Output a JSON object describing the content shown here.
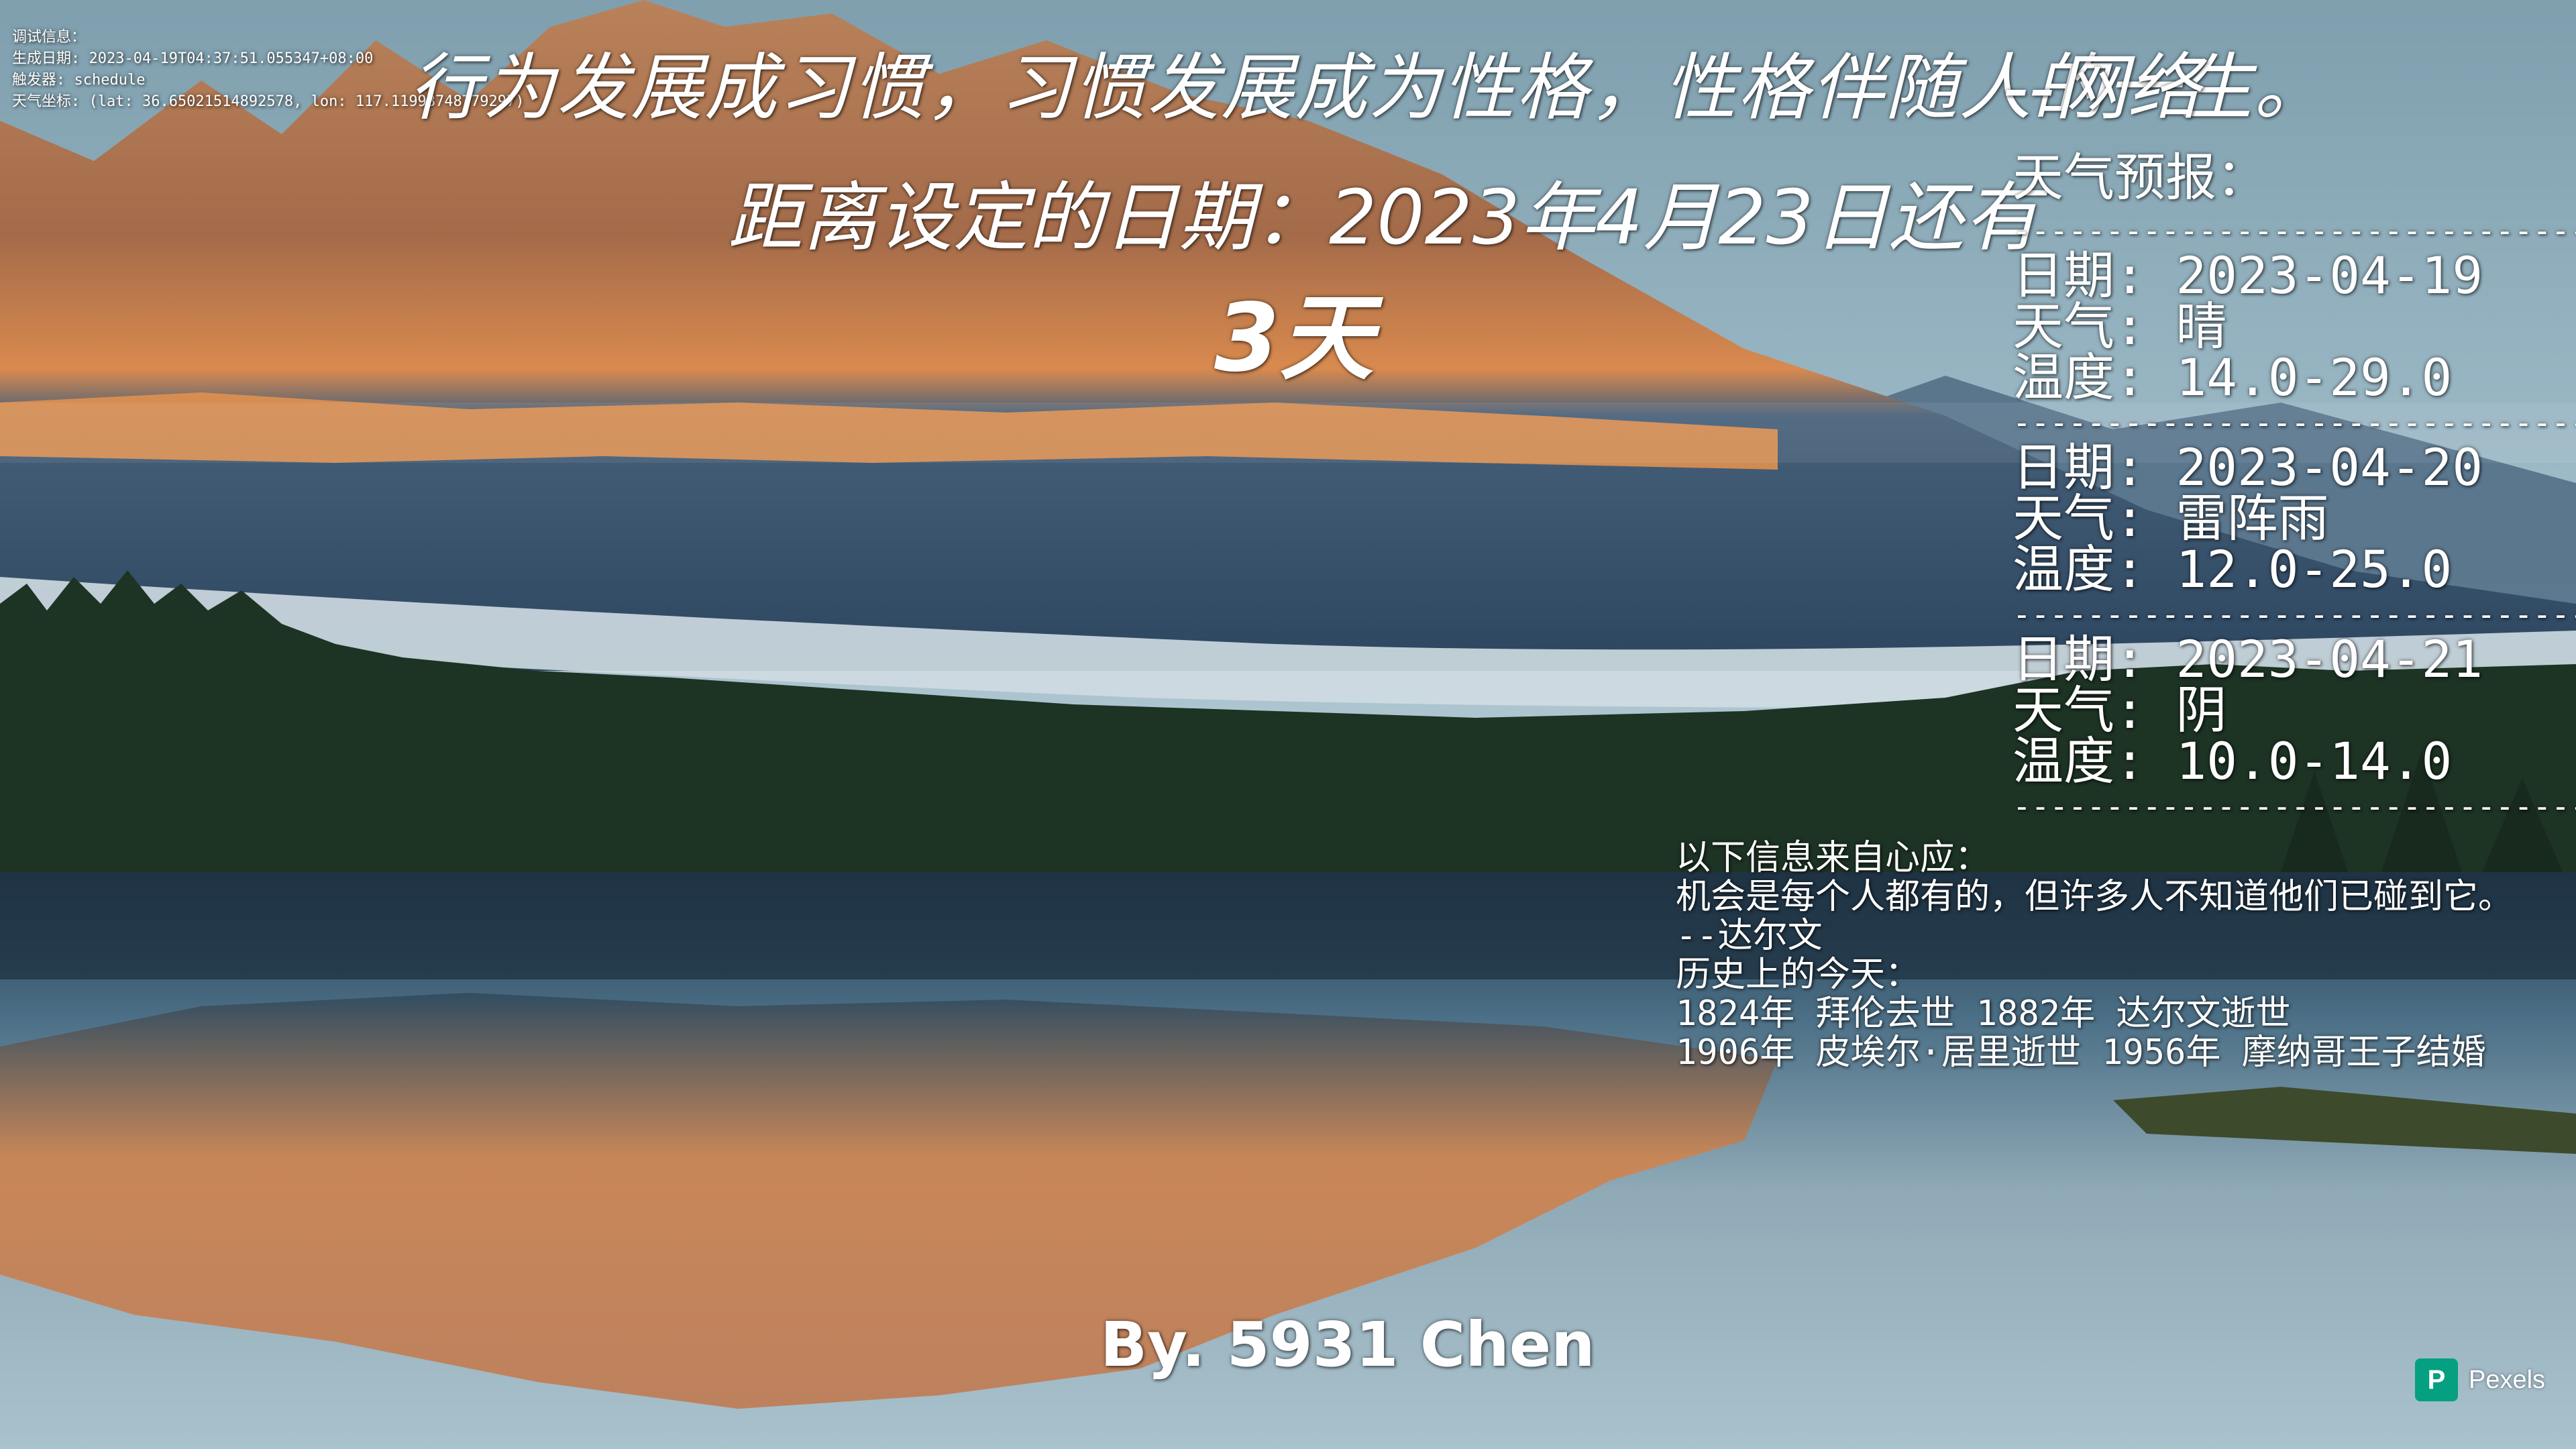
{
  "debug": {
    "lines": [
      "调试信息：",
      "生成日期: 2023-04-19T04:37:51.055347+08:00",
      "触发器: schedule",
      "天气坐标: (lat: 36.65021514892578, lon: 117.11998748779297)"
    ]
  },
  "quote": {
    "text": "行为发展成习惯，习惯发展成为性格，性格伴随人的一生。",
    "source": "--网络"
  },
  "countdown": {
    "title": "距离设定的日期：2023年4月23日还有",
    "days": "3天"
  },
  "weather": {
    "title": "天气预报：",
    "separator": "----------------------------------",
    "days": [
      {
        "date_line": "日期: 2023-04-19",
        "weather_line": "天气: 晴",
        "temp_line": "温度: 14.0-29.0"
      },
      {
        "date_line": "日期: 2023-04-20",
        "weather_line": "天气: 雷阵雨",
        "temp_line": "温度: 12.0-25.0"
      },
      {
        "date_line": "日期: 2023-04-21",
        "weather_line": "天气: 阴",
        "temp_line": "温度: 10.0-14.0"
      }
    ]
  },
  "info": {
    "lines": [
      "以下信息来自心应：",
      "机会是每个人都有的，但许多人不知道他们已碰到它。",
      "--达尔文",
      "历史上的今天：",
      "1824年 拜伦去世  1882年 达尔文逝世",
      "1906年 皮埃尔·居里逝世  1956年 摩纳哥王子结婚"
    ]
  },
  "author": {
    "text": "By. 5931 Chen"
  },
  "watermark": {
    "label": "Pexels",
    "icon": "P",
    "color": "#05a081"
  },
  "palette": {
    "sky": "#8fb0c0",
    "mountain_lit": "#c8784a",
    "mountain_shadow": "#3a5a78",
    "fog": "#c9d6de",
    "forest": "#1f3526",
    "water": "#6f93a8"
  }
}
